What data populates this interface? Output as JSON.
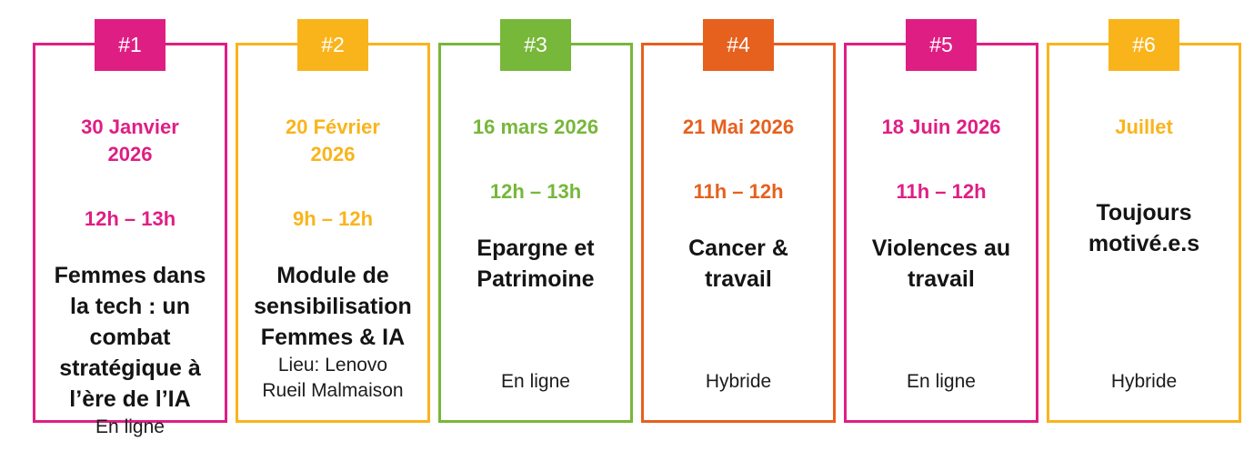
{
  "page": {
    "background": "#ffffff",
    "description_labels": {
      "badge_prefix": "#"
    }
  },
  "colors": {
    "pink": "#DF1E84",
    "gold": "#F9B41C",
    "green": "#77B73A",
    "orange": "#E6601E"
  },
  "events": [
    {
      "number": "#1",
      "color": "#DF1E84",
      "date": "30 Janvier\n2026",
      "time": "12h – 13h",
      "title": "Femmes dans\nla tech : un\ncombat\nstratégique à\nl’ère de l’IA",
      "location": "En ligne"
    },
    {
      "number": "#2",
      "color": "#F9B41C",
      "date": "20 Février\n2026",
      "time": "9h – 12h",
      "title": "Module de\nsensibilisation\nFemmes & IA",
      "location": "Lieu: Lenovo\nRueil Malmaison"
    },
    {
      "number": "#3",
      "color": "#77B73A",
      "date": "16 mars 2026",
      "time": "12h – 13h",
      "title": "Epargne et\nPatrimoine",
      "location": "En ligne"
    },
    {
      "number": "#4",
      "color": "#E6601E",
      "date": "21 Mai 2026",
      "time": "11h – 12h",
      "title": "Cancer &\ntravail",
      "location": "Hybride"
    },
    {
      "number": "#5",
      "color": "#DF1E84",
      "date": "18 Juin 2026",
      "time": "11h – 12h",
      "title": "Violences au\ntravail",
      "location": "En ligne"
    },
    {
      "number": "#6",
      "color": "#F9B41C",
      "date": "Juillet",
      "time": "",
      "title": "Toujours\nmotivé.e.s",
      "location": "Hybride"
    }
  ]
}
